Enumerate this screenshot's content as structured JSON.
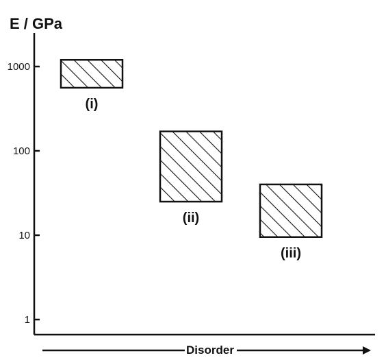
{
  "chart_data": {
    "type": "range-box",
    "ylabel": "E / GPa",
    "xlabel": "Disorder",
    "yscale": "log",
    "ylim": [
      1,
      2500
    ],
    "yticks": [
      {
        "value": 1,
        "label": "1"
      },
      {
        "value": 10,
        "label": "10"
      },
      {
        "value": 100,
        "label": "100"
      },
      {
        "value": 1000,
        "label": "1000"
      }
    ],
    "categories": [
      "(i)",
      "(ii)",
      "(iii)"
    ],
    "ranges": [
      {
        "label": "(i)",
        "low": 560,
        "high": 1200
      },
      {
        "label": "(ii)",
        "low": 25,
        "high": 170
      },
      {
        "label": "(iii)",
        "low": 9.5,
        "high": 40
      }
    ],
    "fill": "hatched",
    "grid": false,
    "colors": {
      "stroke": "#111111",
      "background": "#ffffff"
    }
  }
}
